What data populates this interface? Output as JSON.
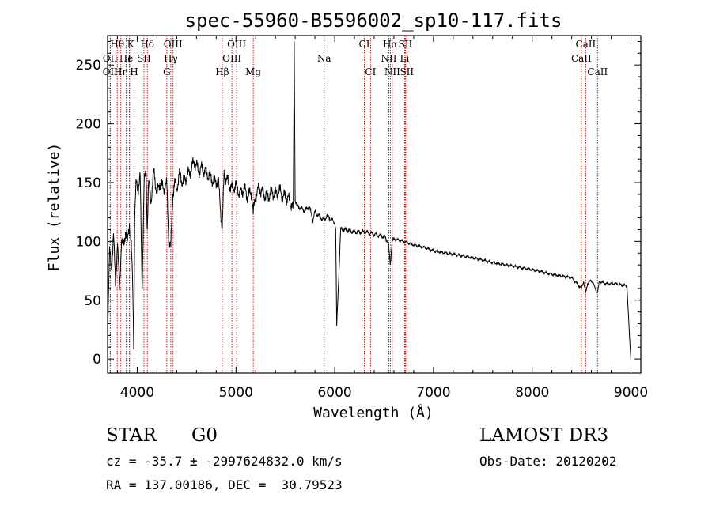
{
  "chart_data": {
    "type": "line",
    "title": "spec-55960-B5596002_sp10-117.fits",
    "xlabel": "Wavelength (Å)",
    "ylabel": "Flux (relative)",
    "xlim": [
      3700,
      9100
    ],
    "ylim": [
      -12,
      275
    ],
    "xticks": [
      4000,
      5000,
      6000,
      7000,
      8000,
      9000
    ],
    "yticks": [
      0,
      50,
      100,
      150,
      200,
      250
    ],
    "series": [
      {
        "name": "spectrum",
        "x": [
          3700,
          3720,
          3740,
          3760,
          3780,
          3800,
          3820,
          3840,
          3860,
          3880,
          3900,
          3920,
          3940,
          3955,
          3965,
          3975,
          3990,
          4010,
          4030,
          4050,
          4070,
          4090,
          4102,
          4115,
          4140,
          4170,
          4200,
          4230,
          4260,
          4300,
          4320,
          4340,
          4360,
          4380,
          4400,
          4430,
          4460,
          4500,
          4540,
          4580,
          4620,
          4660,
          4700,
          4740,
          4780,
          4820,
          4861,
          4880,
          4920,
          4960,
          5000,
          5040,
          5080,
          5120,
          5160,
          5175,
          5200,
          5240,
          5280,
          5320,
          5360,
          5400,
          5440,
          5480,
          5520,
          5560,
          5580,
          5590,
          5600,
          5620,
          5660,
          5700,
          5740,
          5780,
          5800,
          5860,
          5893,
          5920,
          6000,
          6010,
          6020,
          6060,
          6100,
          6200,
          6300,
          6400,
          6500,
          6540,
          6563,
          6580,
          6600,
          6700,
          6800,
          6900,
          7000,
          7200,
          7400,
          7600,
          7800,
          8000,
          8200,
          8400,
          8498,
          8520,
          8542,
          8560,
          8600,
          8662,
          8680,
          8750,
          8850,
          8960,
          8985,
          9000
        ],
        "y": [
          25,
          90,
          78,
          105,
          65,
          98,
          60,
          100,
          96,
          108,
          100,
          115,
          95,
          60,
          10,
          120,
          150,
          145,
          155,
          60,
          150,
          158,
          110,
          150,
          135,
          160,
          140,
          150,
          145,
          148,
          100,
          95,
          140,
          150,
          145,
          158,
          150,
          155,
          160,
          168,
          160,
          162,
          158,
          155,
          150,
          152,
          110,
          158,
          150,
          145,
          148,
          140,
          145,
          138,
          142,
          123,
          140,
          145,
          140,
          138,
          142,
          140,
          143,
          138,
          137,
          132,
          128,
          270,
          135,
          130,
          128,
          126,
          130,
          118,
          125,
          120,
          118,
          122,
          116,
          110,
          28,
          110,
          110,
          108,
          108,
          106,
          104,
          100,
          80,
          100,
          102,
          100,
          97,
          95,
          92,
          89,
          86,
          82,
          79,
          76,
          72,
          69,
          60,
          66,
          56,
          64,
          67,
          56,
          66,
          64,
          64,
          62,
          20,
          0
        ]
      }
    ],
    "lines": [
      {
        "label": "Hθ",
        "x": 3798,
        "row": 0
      },
      {
        "label": "K",
        "x": 3934,
        "row": 0
      },
      {
        "label": "Hδ",
        "x": 4102,
        "row": 0
      },
      {
        "label": "OIII",
        "x": 4363,
        "row": 0
      },
      {
        "label": "OIII",
        "x": 5007,
        "row": 0
      },
      {
        "label": "CI",
        "x": 6300,
        "row": 0
      },
      {
        "label": "Hα",
        "x": 6563,
        "row": 0
      },
      {
        "label": "SII",
        "x": 6716,
        "row": 0
      },
      {
        "label": "CaII",
        "x": 8542,
        "row": 0
      },
      {
        "label": "OII",
        "x": 3727,
        "row": 1
      },
      {
        "label": "He",
        "x": 3889,
        "row": 1
      },
      {
        "label": "I",
        "x": 3920,
        "row": 1
      },
      {
        "label": "SII",
        "x": 4068,
        "row": 1
      },
      {
        "label": "Hγ",
        "x": 4340,
        "row": 1
      },
      {
        "label": "OIII",
        "x": 4959,
        "row": 1
      },
      {
        "label": "Na",
        "x": 5893,
        "row": 1
      },
      {
        "label": "NII",
        "x": 6548,
        "row": 1
      },
      {
        "label": "Li",
        "x": 6708,
        "row": 1
      },
      {
        "label": "CaII",
        "x": 8498,
        "row": 1
      },
      {
        "label": "OII",
        "x": 3727,
        "row": 2
      },
      {
        "label": "Hη",
        "x": 3835,
        "row": 2
      },
      {
        "label": "H",
        "x": 3968,
        "row": 2
      },
      {
        "label": "G",
        "x": 4300,
        "row": 2
      },
      {
        "label": "Hβ",
        "x": 4861,
        "row": 2
      },
      {
        "label": "Mg",
        "x": 5175,
        "row": 2
      },
      {
        "label": "CI",
        "x": 6363,
        "row": 2
      },
      {
        "label": "NII",
        "x": 6583,
        "row": 2
      },
      {
        "label": "SII",
        "x": 6731,
        "row": 2
      },
      {
        "label": "CaII",
        "x": 8662,
        "row": 2
      }
    ]
  },
  "info": {
    "object_class": "STAR",
    "subclass": "G0",
    "survey": "LAMOST DR3",
    "cz": "cz = -35.7 ± -2997624832.0 km/s",
    "obs_date": "Obs-Date: 20120202",
    "coords": "RA = 137.00186, DEC =  30.79523"
  },
  "colors": {
    "spectrum": "#000000",
    "lines": "#c80000"
  }
}
